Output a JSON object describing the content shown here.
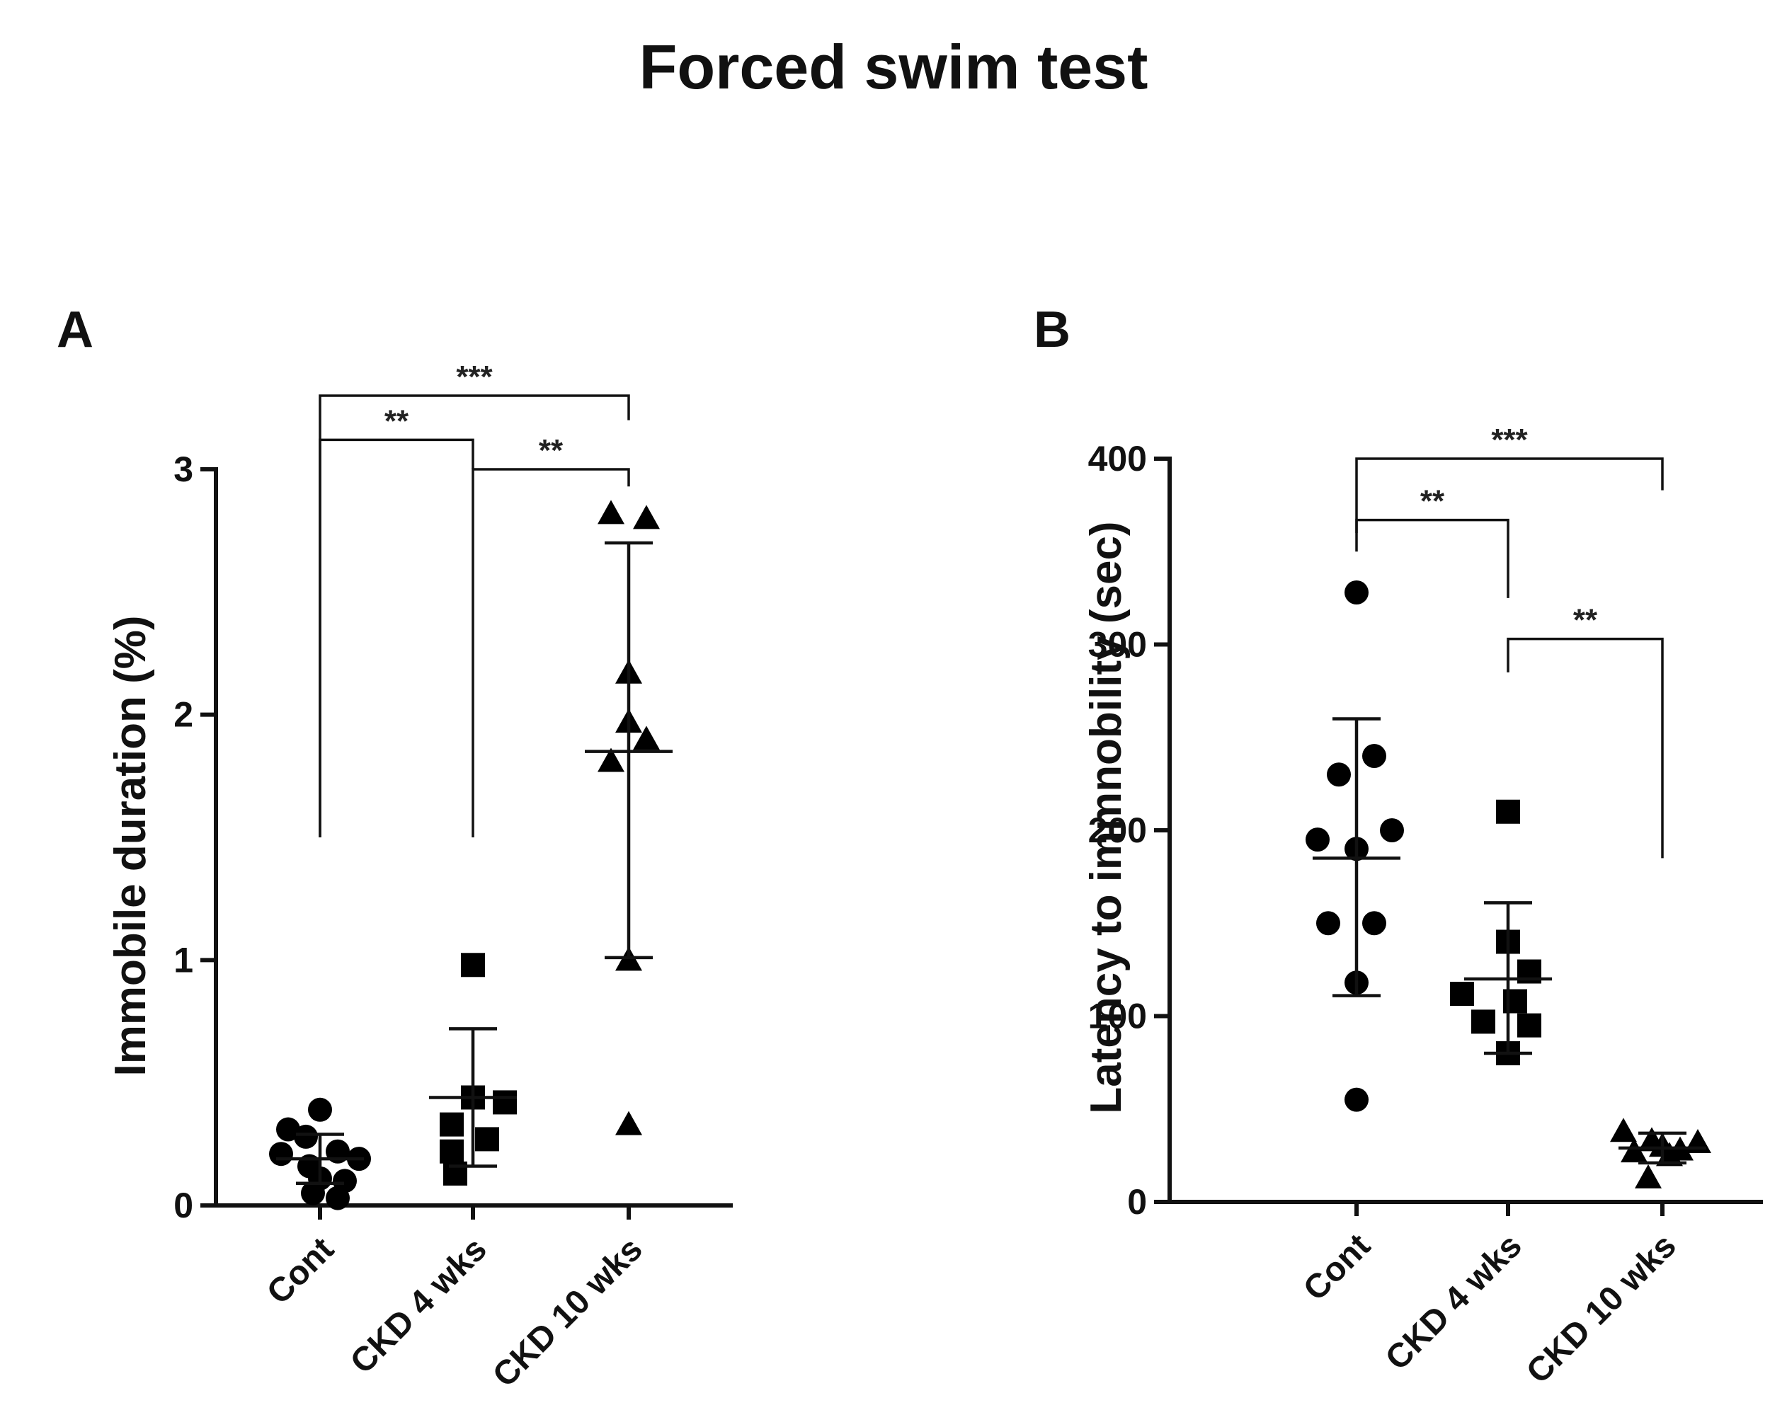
{
  "figure": {
    "title": "Forced swim test"
  },
  "chart_data": [
    {
      "type": "scatter",
      "panel_label": "A",
      "title": "",
      "xlabel": "",
      "ylabel": "Immobile duration (%)",
      "categories": [
        "Cont",
        "CKD 4 wks",
        "CKD 10 wks"
      ],
      "ylim": [
        0,
        3
      ],
      "yticks": [
        0,
        1,
        2,
        3
      ],
      "ytick_labels": [
        "0",
        "1",
        "2",
        "3"
      ],
      "grid": false,
      "marker_shapes": [
        "circle",
        "square",
        "triangle"
      ],
      "points": [
        [
          0.39,
          0.31,
          0.28,
          0.22,
          0.21,
          0.19,
          0.16,
          0.11,
          0.1,
          0.05,
          0.03
        ],
        [
          0.98,
          0.44,
          0.42,
          0.33,
          0.27,
          0.22,
          0.13
        ],
        [
          2.82,
          2.8,
          2.17,
          1.97,
          1.9,
          1.81,
          1.0,
          0.33
        ]
      ],
      "summary": [
        {
          "mean": 0.19,
          "sd_low": 0.09,
          "sd_high": 0.29
        },
        {
          "mean": 0.44,
          "sd_low": 0.16,
          "sd_high": 0.72
        },
        {
          "mean": 1.85,
          "sd_low": 1.01,
          "sd_high": 2.7
        }
      ],
      "significance": [
        {
          "groups": [
            0,
            2
          ],
          "label": "***",
          "top": 3.3,
          "drop_left": 1.5,
          "drop_right": 3.2
        },
        {
          "groups": [
            0,
            1
          ],
          "label": "**",
          "top": 3.12,
          "drop_left": 1.5,
          "drop_right": 3.0
        },
        {
          "groups": [
            1,
            2
          ],
          "label": "**",
          "top": 3.0,
          "drop_left": 1.5,
          "drop_right": 2.93
        }
      ]
    },
    {
      "type": "scatter",
      "panel_label": "B",
      "title": "",
      "xlabel": "",
      "ylabel": "Latency to immnobility (sec)",
      "categories": [
        "Cont",
        "CKD 4 wks",
        "CKD 10 wks"
      ],
      "ylim": [
        0,
        400
      ],
      "yticks": [
        0,
        100,
        200,
        300,
        400
      ],
      "ytick_labels": [
        "0",
        "100",
        "200",
        "300",
        "400"
      ],
      "grid": false,
      "marker_shapes": [
        "circle",
        "square",
        "triangle"
      ],
      "points": [
        [
          328,
          240,
          230,
          200,
          195,
          190,
          150,
          150,
          118,
          55
        ],
        [
          210,
          140,
          124,
          112,
          108,
          97,
          95,
          80
        ],
        [
          38,
          33,
          32,
          30,
          28,
          27,
          25,
          13
        ]
      ],
      "summary": [
        {
          "mean": 185,
          "sd_low": 111,
          "sd_high": 260
        },
        {
          "mean": 120,
          "sd_low": 80,
          "sd_high": 161
        },
        {
          "mean": 29,
          "sd_low": 21,
          "sd_high": 37
        }
      ],
      "significance": [
        {
          "groups": [
            0,
            2
          ],
          "label": "***",
          "top": 400,
          "drop_left": 360,
          "drop_right": 383
        },
        {
          "groups": [
            0,
            1
          ],
          "label": "**",
          "top": 367,
          "drop_left": 350,
          "drop_right": 325
        },
        {
          "groups": [
            1,
            2
          ],
          "label": "**",
          "top": 303,
          "drop_left": 285,
          "drop_right": 185
        }
      ]
    }
  ]
}
